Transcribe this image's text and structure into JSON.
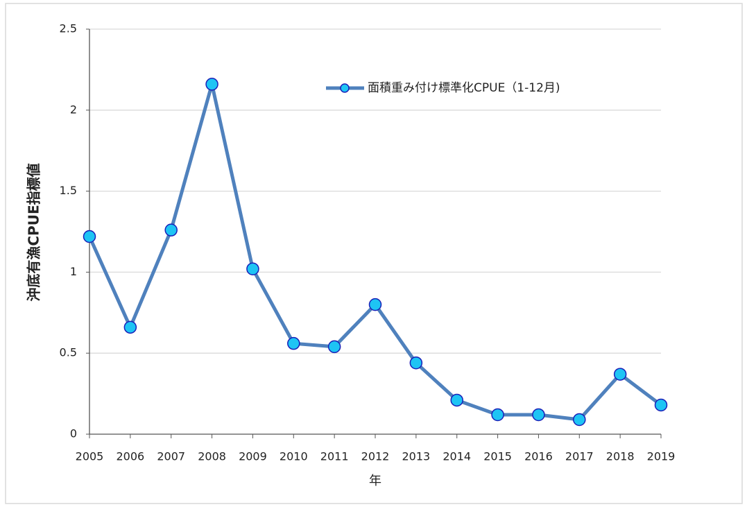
{
  "chart_data": {
    "type": "line",
    "y_label": "沖底有漁CPUE指標値",
    "x_label": "年",
    "categories": [
      "2005",
      "2006",
      "2007",
      "2008",
      "2009",
      "2010",
      "2011",
      "2012",
      "2013",
      "2014",
      "2015",
      "2016",
      "2017",
      "2018",
      "2019"
    ],
    "series": [
      {
        "name": "面積重み付け標準化CPUE（1-12月)",
        "color": "#4f81bd",
        "marker_color": "#1ec4f4",
        "marker_edge": "#1a1fb8",
        "values": [
          1.22,
          0.66,
          1.26,
          2.16,
          1.02,
          0.56,
          0.54,
          0.8,
          0.44,
          0.21,
          0.12,
          0.12,
          0.09,
          0.37,
          0.18
        ]
      }
    ],
    "ylim": [
      0,
      2.5
    ],
    "yticks": [
      0,
      0.5,
      1,
      1.5,
      2,
      2.5
    ],
    "grid": true
  }
}
